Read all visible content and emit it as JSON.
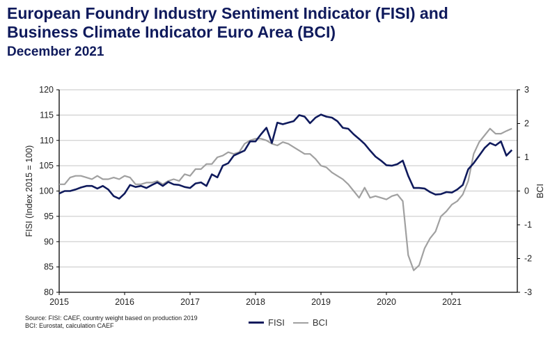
{
  "header": {
    "title_line1": "European Foundry Industry Sentiment Indicator (FISI) and",
    "title_line2": "Business Climate Indicator Euro Area (BCI)",
    "subtitle": "December 2021"
  },
  "footer": {
    "source_line1": "Source: FISI: CAEF, country weight based on production 2019",
    "source_line2": "BCI: Eurostat, calculation CAEF"
  },
  "chart_data": {
    "type": "line",
    "title": "European Foundry Industry Sentiment Indicator (FISI) and Business Climate Indicator Euro Area (BCI)",
    "subtitle": "December 2021",
    "xlabel": "",
    "ylabel": "FISI (Index 2015 = 100)",
    "y2label": "BCI",
    "xlim": [
      2015,
      2022
    ],
    "ylim": [
      80,
      120
    ],
    "y2lim": [
      -3,
      3
    ],
    "x_ticks": [
      "2015",
      "2016",
      "2017",
      "2018",
      "2019",
      "2020",
      "2021"
    ],
    "y_ticks": [
      "80",
      "85",
      "90",
      "95",
      "100",
      "105",
      "110",
      "115",
      "120"
    ],
    "y2_ticks": [
      "-3",
      "-2",
      "-1",
      "0",
      "1",
      "2",
      "3"
    ],
    "grid": true,
    "legend": "bottom-center",
    "colors": {
      "FISI": "#0f1a5c",
      "BCI": "#a0a0a0"
    },
    "series": [
      {
        "name": "FISI",
        "axis": "left",
        "start": "2015-01",
        "frequency": "monthly",
        "values": [
          99.5,
          100,
          100,
          100.3,
          100.7,
          101,
          101,
          100.5,
          101,
          100.3,
          99,
          98.5,
          99.5,
          101.2,
          100.8,
          101,
          100.6,
          101.2,
          101.7,
          101,
          101.8,
          101.3,
          101.2,
          100.8,
          100.6,
          101.5,
          101.7,
          101,
          103.3,
          102.7,
          105,
          105.5,
          107,
          107.5,
          108,
          109.8,
          109.8,
          111.2,
          112.5,
          109.5,
          113.5,
          113.2,
          113.5,
          113.8,
          115,
          114.7,
          113.4,
          114.5,
          115.1,
          114.7,
          114.5,
          113.8,
          112.5,
          112.3,
          111.2,
          110.3,
          109.3,
          108,
          106.8,
          106,
          105.1,
          105,
          105.3,
          106,
          103,
          100.6,
          100.6,
          100.5,
          99.8,
          99.3,
          99.4,
          99.8,
          99.7,
          100.3,
          101.2,
          104.3,
          105.5,
          107,
          108.5,
          109.5,
          109,
          109.8,
          107,
          108.1
        ]
      },
      {
        "name": "BCI",
        "axis": "right",
        "start": "2015-01",
        "frequency": "monthly",
        "values": [
          0.2,
          0.2,
          0.4,
          0.45,
          0.45,
          0.4,
          0.35,
          0.45,
          0.35,
          0.35,
          0.4,
          0.35,
          0.45,
          0.4,
          0.2,
          0.2,
          0.25,
          0.25,
          0.3,
          0.2,
          0.3,
          0.35,
          0.3,
          0.5,
          0.45,
          0.65,
          0.65,
          0.8,
          0.8,
          1.0,
          1.05,
          1.15,
          1.1,
          1.15,
          1.4,
          1.5,
          1.55,
          1.55,
          1.5,
          1.4,
          1.35,
          1.45,
          1.4,
          1.3,
          1.2,
          1.1,
          1.1,
          0.95,
          0.75,
          0.7,
          0.55,
          0.45,
          0.35,
          0.2,
          0.0,
          -0.2,
          0.1,
          -0.2,
          -0.15,
          -0.2,
          -0.25,
          -0.15,
          -0.1,
          -0.3,
          -1.9,
          -2.35,
          -2.2,
          -1.7,
          -1.4,
          -1.2,
          -0.75,
          -0.6,
          -0.4,
          -0.3,
          -0.1,
          0.3,
          1.1,
          1.45,
          1.65,
          1.85,
          1.7,
          1.7,
          1.78,
          1.85
        ]
      }
    ]
  }
}
